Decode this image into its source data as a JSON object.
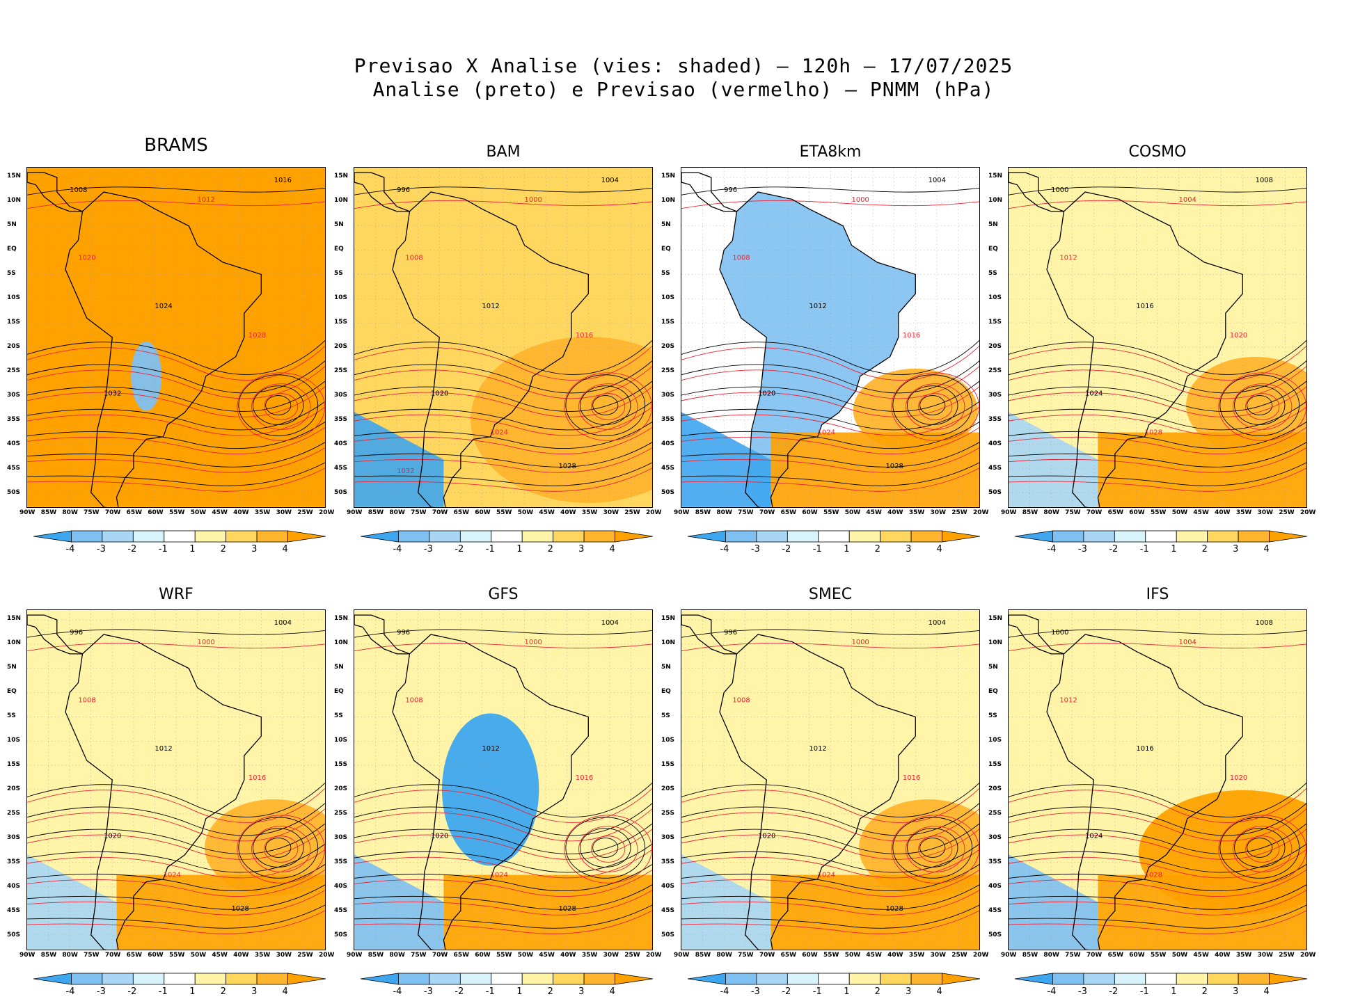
{
  "title": {
    "line1": "Previsao X Analise (vies: shaded) — 120h — 17/07/2025",
    "line2": "Analise (preto) e Previsao (vermelho) — PNMM (hPa)"
  },
  "lat_ticks": [
    "15N",
    "10N",
    "5N",
    "EQ",
    "5S",
    "10S",
    "15S",
    "20S",
    "25S",
    "30S",
    "35S",
    "40S",
    "45S",
    "50S"
  ],
  "lon_ticks": [
    "90W",
    "85W",
    "80W",
    "75W",
    "70W",
    "65W",
    "60W",
    "55W",
    "50W",
    "45W",
    "40W",
    "35W",
    "30W",
    "25W",
    "20W"
  ],
  "colorbar_ticks": [
    "-4",
    "-3",
    "-2",
    "-1",
    "1",
    "2",
    "3",
    "4"
  ],
  "colorbar_colors": [
    "#3ea6ef",
    "#7fc0f2",
    "#a9d6f5",
    "#d8f3f9",
    "#ffffff",
    "#fff4a8",
    "#ffd75e",
    "#ffb52e",
    "#ffa200"
  ],
  "panels": [
    {
      "name": "BRAMS",
      "bias": "warm_all",
      "labels": [
        "1008",
        "1012",
        "1016",
        "1020",
        "1024",
        "1028",
        "1032"
      ]
    },
    {
      "name": "BAM",
      "bias": "warm",
      "labels": [
        "996",
        "1000",
        "1004",
        "1008",
        "1012",
        "1016",
        "1020",
        "1024",
        "1028",
        "1032"
      ]
    },
    {
      "name": "ETA8km",
      "bias": "cold_land",
      "labels": [
        "996",
        "1000",
        "1004",
        "1008",
        "1012",
        "1016",
        "1020",
        "1024",
        "1028"
      ]
    },
    {
      "name": "COSMO",
      "bias": "mixed",
      "labels": [
        "1000",
        "1004",
        "1008",
        "1012",
        "1016",
        "1020",
        "1024",
        "1028"
      ]
    },
    {
      "name": "WRF",
      "bias": "mixed",
      "labels": [
        "996",
        "1000",
        "1004",
        "1008",
        "1012",
        "1016",
        "1020",
        "1024",
        "1028"
      ]
    },
    {
      "name": "GFS",
      "bias": "cold_center",
      "labels": [
        "996",
        "1000",
        "1004",
        "1008",
        "1012",
        "1016",
        "1020",
        "1024",
        "1028"
      ]
    },
    {
      "name": "SMEC",
      "bias": "mixed",
      "labels": [
        "996",
        "1000",
        "1004",
        "1008",
        "1012",
        "1016",
        "1020",
        "1024",
        "1028"
      ]
    },
    {
      "name": "IFS",
      "bias": "warm_south",
      "labels": [
        "1000",
        "1004",
        "1008",
        "1012",
        "1016",
        "1020",
        "1024",
        "1028"
      ]
    }
  ]
}
